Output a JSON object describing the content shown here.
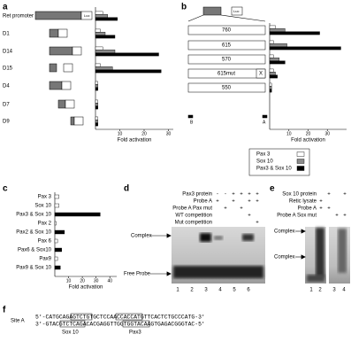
{
  "chart_data": [
    {
      "type": "bar",
      "orientation": "horizontal",
      "panel": "a",
      "categories": [
        "Ret promoter",
        "D1",
        "D14",
        "D15",
        "D4",
        "D7",
        "D9"
      ],
      "series": [
        {
          "color": "#ffffff",
          "values": [
            3,
            2,
            3,
            2,
            1,
            1,
            1
          ]
        },
        {
          "color": "#8c8c8c",
          "values": [
            5,
            4,
            8,
            7,
            1,
            1,
            1
          ]
        },
        {
          "color": "#000000",
          "values": [
            9,
            8,
            26,
            27,
            1,
            1,
            1
          ]
        }
      ],
      "xlim": [
        0,
        32
      ],
      "xticks": [
        10,
        20,
        30
      ],
      "xlabel": "Fold activation"
    },
    {
      "type": "bar",
      "orientation": "horizontal",
      "panel": "b",
      "categories": [
        "760",
        "615",
        "570",
        "615mut",
        "550"
      ],
      "series": [
        {
          "name": "Pax 3",
          "color": "#ffffff",
          "values": [
            3,
            2,
            2,
            2,
            1
          ]
        },
        {
          "name": "Sox 10",
          "color": "#8c8c8c",
          "values": [
            8,
            9,
            5,
            3,
            1
          ]
        },
        {
          "name": "Pax3 & Sox 10",
          "color": "#000000",
          "values": [
            26,
            37,
            8,
            4,
            1
          ]
        }
      ],
      "xlim": [
        0,
        40
      ],
      "xticks": [
        10,
        20,
        30
      ],
      "xlabel": "Fold activation",
      "legend": "bottom-left"
    },
    {
      "type": "bar",
      "orientation": "horizontal",
      "panel": "c",
      "categories": [
        "Pax 3",
        "Sox 10",
        "Pax3 & Sox 10",
        "Pax 2",
        "Pax2 & Sox 10",
        "Pax 6",
        "Pax6 & Sox10",
        "Pax9",
        "Pax9 & Sox 10"
      ],
      "values": [
        3,
        3,
        33,
        1,
        7,
        2,
        5,
        2,
        4
      ],
      "colors": [
        "#ffffff",
        "#ffffff",
        "#000000",
        "#ffffff",
        "#000000",
        "#ffffff",
        "#000000",
        "#ffffff",
        "#000000"
      ],
      "xlim": [
        0,
        45
      ],
      "xticks": [
        10,
        20,
        30,
        40
      ],
      "xlabel": "Fold activation"
    }
  ],
  "figure": {
    "reporter": "Luc",
    "b_sites": [
      "B",
      "A"
    ],
    "b_mutation": "X",
    "d": {
      "panel": "d",
      "rows": [
        {
          "label": "Pax3 protein",
          "signs": [
            "-",
            "-",
            "+",
            "+",
            "+",
            "+"
          ]
        },
        {
          "label": "Probe A",
          "signs": [
            "+",
            null,
            "+",
            null,
            "+",
            "+"
          ]
        },
        {
          "label": "Probe A Pax mut",
          "signs": [
            null,
            "+",
            null,
            "+",
            null,
            null
          ]
        },
        {
          "label": "WT competition",
          "signs": [
            null,
            null,
            null,
            null,
            "+",
            null
          ]
        },
        {
          "label": "Mut competition",
          "signs": [
            null,
            null,
            null,
            null,
            null,
            "+"
          ]
        }
      ],
      "complex": "Complex",
      "free_probe": "Free Probe",
      "lanes": [
        1,
        2,
        3,
        4,
        5,
        6
      ]
    },
    "e": {
      "panel": "e",
      "rows": [
        {
          "label": "Sox 10 protein",
          "signs": [
            null,
            "+",
            null,
            "+"
          ]
        },
        {
          "label": "Retic lysate",
          "signs": [
            "+",
            null,
            null,
            null
          ]
        },
        {
          "label": "Probe A",
          "signs": [
            "+",
            "+",
            null,
            null
          ]
        },
        {
          "label": "Probe A Sox mut",
          "signs": [
            null,
            null,
            "+",
            "+"
          ]
        }
      ],
      "complex_upper": "Complex",
      "complex_lower": "Complex",
      "lanes": [
        1,
        2,
        3,
        4
      ]
    },
    "f": {
      "panel": "f",
      "site": "Site A",
      "top": "5'-CATGCAGAGTCTGTGCTCCAACCACCATGTTCACTCTGCCCATG-3'",
      "bottom": "3'-GTACGTCTCAGACACGAGGTTGGTGGTACAAGTGAGACGGGTAC-5'",
      "sox_label": "Sox 10",
      "pax_label": "Pax3"
    }
  }
}
